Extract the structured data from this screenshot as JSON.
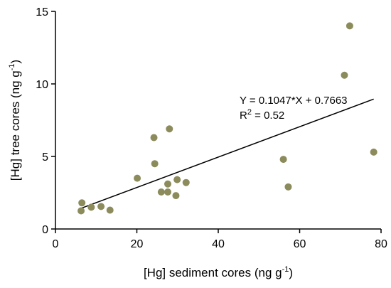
{
  "chart_data": {
    "type": "scatter",
    "xlabel": {
      "main": "[Hg] sediment cores (ng g",
      "sup": "-1",
      "close": ")"
    },
    "ylabel": {
      "main": "[Hg] tree cores (ng g",
      "sup": "-1",
      "close": ")"
    },
    "xlim": [
      0,
      80
    ],
    "ylim": [
      0,
      15
    ],
    "x_ticks": [
      0,
      20,
      40,
      60,
      80
    ],
    "y_ticks": [
      0,
      5,
      10,
      15
    ],
    "x_tick_labels": [
      "0",
      "20",
      "40",
      "60",
      "80"
    ],
    "y_tick_labels": [
      "0",
      "5",
      "10",
      "15"
    ],
    "grid": false,
    "marker_color": "#8b8b5c",
    "series": [
      {
        "points": [
          {
            "x": 6.5,
            "y": 1.8
          },
          {
            "x": 6.3,
            "y": 1.25
          },
          {
            "x": 8.8,
            "y": 1.5
          },
          {
            "x": 11.2,
            "y": 1.55
          },
          {
            "x": 13.4,
            "y": 1.3
          },
          {
            "x": 20.1,
            "y": 3.5
          },
          {
            "x": 24.2,
            "y": 6.3
          },
          {
            "x": 24.4,
            "y": 4.5
          },
          {
            "x": 26.0,
            "y": 2.55
          },
          {
            "x": 27.6,
            "y": 3.1
          },
          {
            "x": 27.6,
            "y": 2.55
          },
          {
            "x": 28.0,
            "y": 6.9
          },
          {
            "x": 29.6,
            "y": 2.3
          },
          {
            "x": 29.9,
            "y": 3.4
          },
          {
            "x": 32.1,
            "y": 3.2
          },
          {
            "x": 56.0,
            "y": 4.8
          },
          {
            "x": 57.2,
            "y": 2.9
          },
          {
            "x": 71.0,
            "y": 10.6
          },
          {
            "x": 72.3,
            "y": 14.0
          },
          {
            "x": 78.2,
            "y": 5.3
          }
        ]
      }
    ],
    "fit": {
      "slope": 0.1047,
      "intercept": 0.7663,
      "x_range": [
        6.3,
        78.2
      ],
      "equation": "Y = 0.1047*X + 0.7663",
      "r2_prefix": "R",
      "r2_sup": "2",
      "r2_suffix": " = 0.52"
    }
  }
}
